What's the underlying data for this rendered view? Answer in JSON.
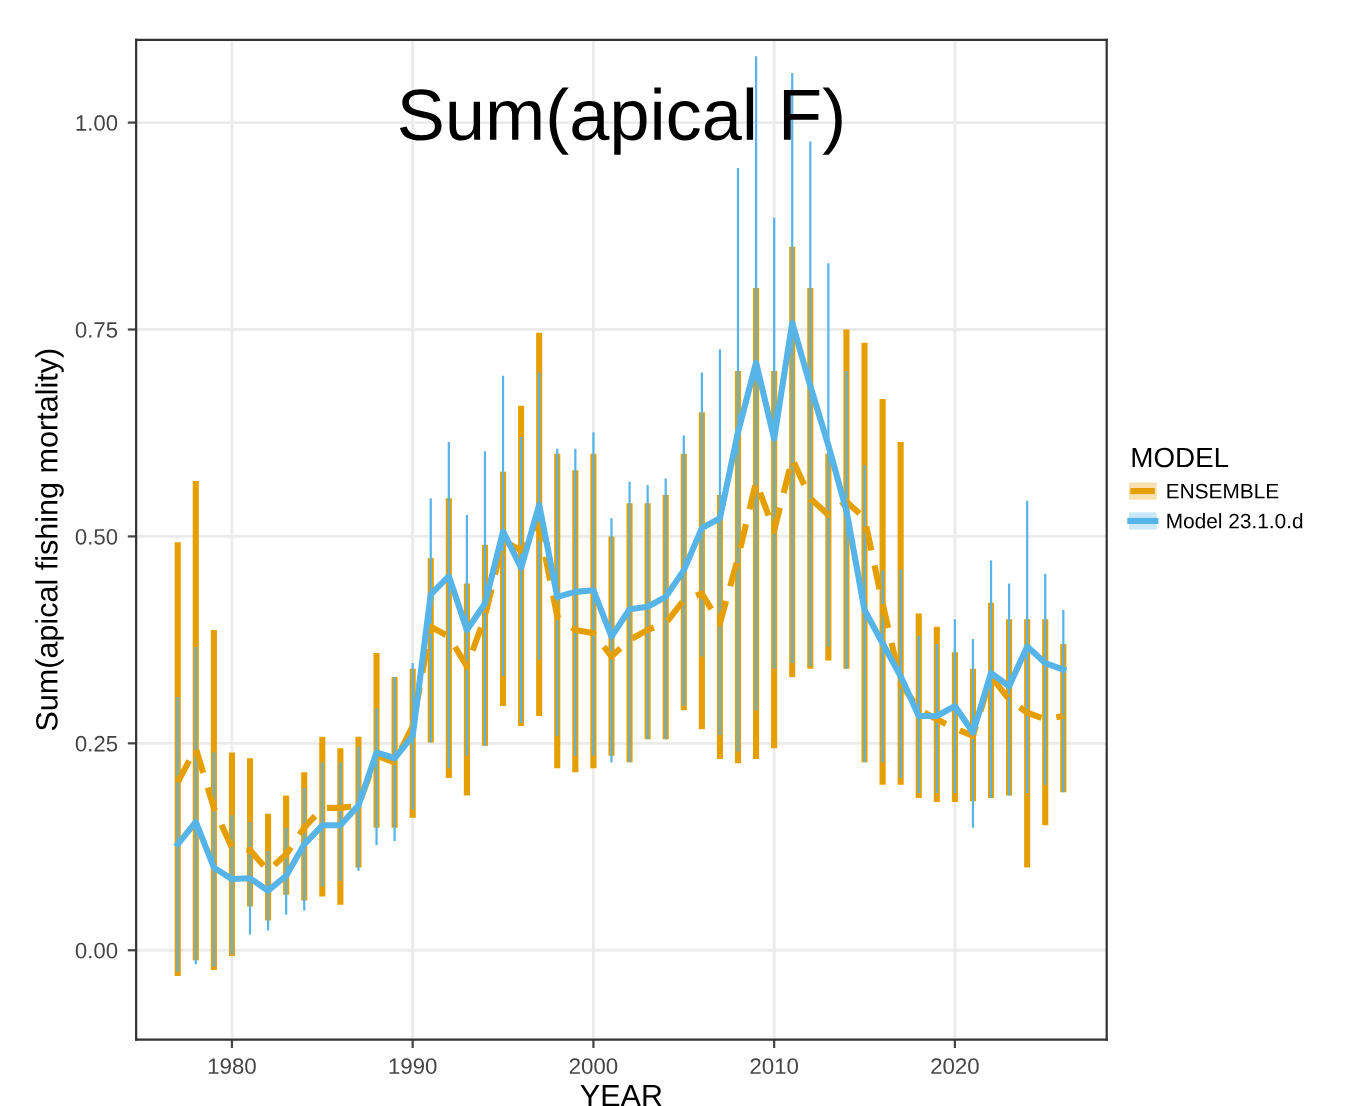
{
  "chart_data": {
    "type": "line",
    "title": "Sum(apical F)",
    "xlabel": "YEAR",
    "ylabel": "Sum(apical fishing mortality)",
    "legend_title": "MODEL",
    "x": [
      1977,
      1978,
      1979,
      1980,
      1981,
      1982,
      1983,
      1984,
      1985,
      1986,
      1987,
      1988,
      1989,
      1990,
      1991,
      1992,
      1993,
      1994,
      1995,
      1996,
      1997,
      1998,
      1999,
      2000,
      2001,
      2002,
      2003,
      2004,
      2005,
      2006,
      2007,
      2008,
      2009,
      2010,
      2011,
      2012,
      2013,
      2014,
      2015,
      2016,
      2017,
      2018,
      2019,
      2020,
      2021,
      2022,
      2023,
      2024,
      2025,
      2026
    ],
    "series": [
      {
        "name": "ENSEMBLE",
        "color": "#e69f00",
        "line_style": "dashed",
        "values": [
          0.203,
          0.244,
          0.172,
          0.124,
          0.121,
          0.096,
          0.116,
          0.148,
          0.172,
          0.172,
          0.175,
          0.235,
          0.227,
          0.271,
          0.391,
          0.379,
          0.343,
          0.403,
          0.495,
          0.483,
          0.514,
          0.403,
          0.387,
          0.383,
          0.355,
          0.375,
          0.387,
          0.395,
          0.423,
          0.431,
          0.395,
          0.474,
          0.566,
          0.507,
          0.594,
          0.546,
          0.526,
          0.542,
          0.522,
          0.419,
          0.323,
          0.291,
          0.279,
          0.268,
          0.259,
          0.331,
          0.303,
          0.287,
          0.279,
          0.283
        ],
        "errors": [
          [
            -0.031,
            0.493
          ],
          [
            -0.012,
            0.567
          ],
          [
            -0.024,
            0.387
          ],
          [
            -0.007,
            0.239
          ],
          [
            0.053,
            0.232
          ],
          [
            0.036,
            0.165
          ],
          [
            0.067,
            0.187
          ],
          [
            0.06,
            0.215
          ],
          [
            0.065,
            0.258
          ],
          [
            0.055,
            0.244
          ],
          [
            0.1,
            0.258
          ],
          [
            0.148,
            0.359
          ],
          [
            0.148,
            0.33
          ],
          [
            0.16,
            0.34
          ],
          [
            0.251,
            0.474
          ],
          [
            0.208,
            0.546
          ],
          [
            0.187,
            0.443
          ],
          [
            0.247,
            0.49
          ],
          [
            0.295,
            0.578
          ],
          [
            0.271,
            0.658
          ],
          [
            0.283,
            0.746
          ],
          [
            0.22,
            0.6
          ],
          [
            0.215,
            0.58
          ],
          [
            0.22,
            0.6
          ],
          [
            0.235,
            0.5
          ],
          [
            0.227,
            0.54
          ],
          [
            0.255,
            0.54
          ],
          [
            0.255,
            0.55
          ],
          [
            0.29,
            0.6
          ],
          [
            0.267,
            0.65
          ],
          [
            0.231,
            0.55
          ],
          [
            0.226,
            0.7
          ],
          [
            0.231,
            0.8
          ],
          [
            0.244,
            0.7
          ],
          [
            0.33,
            0.85
          ],
          [
            0.34,
            0.8
          ],
          [
            0.35,
            0.6
          ],
          [
            0.34,
            0.75
          ],
          [
            0.227,
            0.734
          ],
          [
            0.2,
            0.666
          ],
          [
            0.2,
            0.614
          ],
          [
            0.184,
            0.407
          ],
          [
            0.179,
            0.391
          ],
          [
            0.179,
            0.36
          ],
          [
            0.18,
            0.34
          ],
          [
            0.184,
            0.42
          ],
          [
            0.187,
            0.4
          ],
          [
            0.1,
            0.4
          ],
          [
            0.151,
            0.4
          ],
          [
            0.191,
            0.37
          ]
        ]
      },
      {
        "name": "Model 23.1.0.d",
        "color": "#56b4e9",
        "line_style": "solid",
        "values": [
          0.128,
          0.155,
          0.1,
          0.086,
          0.087,
          0.072,
          0.09,
          0.128,
          0.151,
          0.151,
          0.175,
          0.239,
          0.232,
          0.259,
          0.43,
          0.452,
          0.387,
          0.419,
          0.506,
          0.462,
          0.538,
          0.427,
          0.433,
          0.435,
          0.379,
          0.412,
          0.415,
          0.427,
          0.459,
          0.51,
          0.522,
          0.626,
          0.71,
          0.618,
          0.758,
          0.682,
          0.61,
          0.531,
          0.411,
          0.371,
          0.331,
          0.283,
          0.283,
          0.295,
          0.263,
          0.335,
          0.319,
          0.367,
          0.347,
          0.339
        ],
        "errors": [
          [
            -0.026,
            0.306
          ],
          [
            -0.017,
            0.366
          ],
          [
            -0.02,
            0.239
          ],
          [
            -0.005,
            0.163
          ],
          [
            0.019,
            0.155
          ],
          [
            0.024,
            0.12
          ],
          [
            0.043,
            0.148
          ],
          [
            0.048,
            0.196
          ],
          [
            0.077,
            0.227
          ],
          [
            0.084,
            0.227
          ],
          [
            0.096,
            0.246
          ],
          [
            0.127,
            0.292
          ],
          [
            0.132,
            0.33
          ],
          [
            0.17,
            0.347
          ],
          [
            0.251,
            0.546
          ],
          [
            0.22,
            0.614
          ],
          [
            0.235,
            0.526
          ],
          [
            0.247,
            0.603
          ],
          [
            0.331,
            0.694
          ],
          [
            0.275,
            0.62
          ],
          [
            0.351,
            0.698
          ],
          [
            0.259,
            0.606
          ],
          [
            0.235,
            0.606
          ],
          [
            0.235,
            0.626
          ],
          [
            0.227,
            0.522
          ],
          [
            0.227,
            0.566
          ],
          [
            0.255,
            0.562
          ],
          [
            0.255,
            0.57
          ],
          [
            0.295,
            0.622
          ],
          [
            0.355,
            0.698
          ],
          [
            0.26,
            0.726
          ],
          [
            0.24,
            0.945
          ],
          [
            0.29,
            1.08
          ],
          [
            0.34,
            0.885
          ],
          [
            0.347,
            1.06
          ],
          [
            0.343,
            0.977
          ],
          [
            0.367,
            0.83
          ],
          [
            0.34,
            0.7
          ],
          [
            0.227,
            0.586
          ],
          [
            0.227,
            0.459
          ],
          [
            0.208,
            0.46
          ],
          [
            0.19,
            0.38
          ],
          [
            0.19,
            0.37
          ],
          [
            0.19,
            0.4
          ],
          [
            0.148,
            0.376
          ],
          [
            0.184,
            0.471
          ],
          [
            0.187,
            0.443
          ],
          [
            0.19,
            0.543
          ],
          [
            0.2,
            0.455
          ],
          [
            0.191,
            0.411
          ]
        ]
      }
    ],
    "xlim": [
      1974.7,
      2028.4
    ],
    "ylim": [
      -0.108,
      1.1
    ],
    "xticks": [
      1980,
      1990,
      2000,
      2010,
      2020
    ],
    "yticks": [
      {
        "value": 0,
        "label": "0.00"
      },
      {
        "value": 0.25,
        "label": "0.25"
      },
      {
        "value": 0.5,
        "label": "0.50"
      },
      {
        "value": 0.75,
        "label": "0.75"
      },
      {
        "value": 1,
        "label": "1.00"
      }
    ],
    "grid": true,
    "legend": "right"
  }
}
